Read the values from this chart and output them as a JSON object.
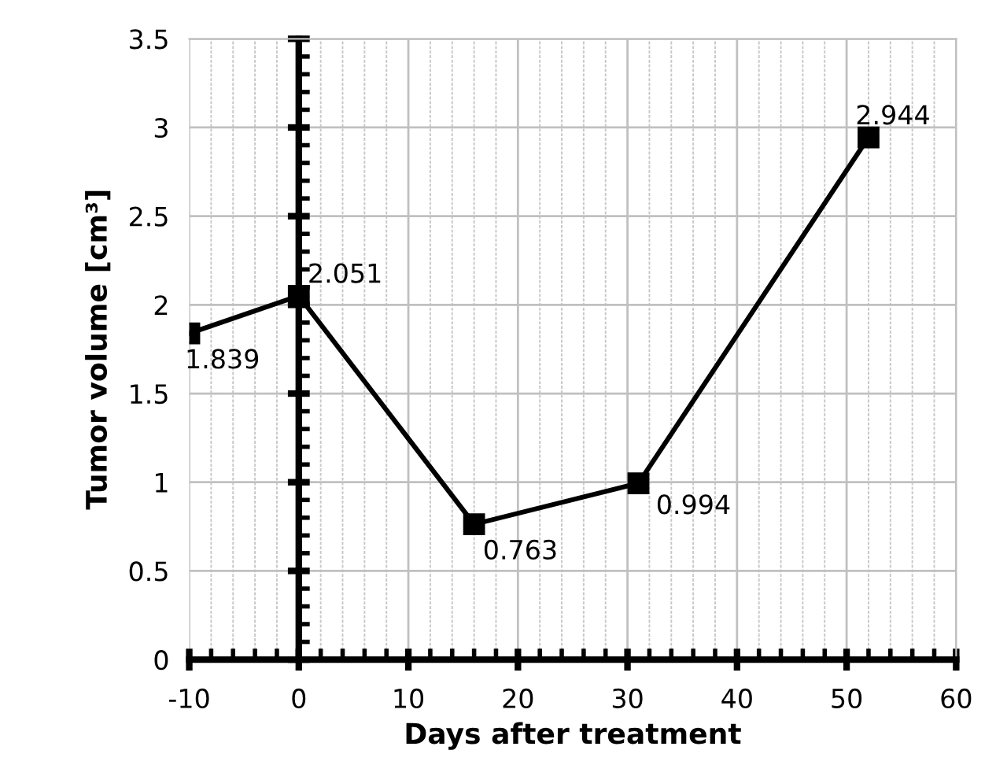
{
  "chart_data": {
    "type": "line",
    "xlabel": "Days after treatment",
    "ylabel": "Tumor volume [cm³]",
    "x": [
      -10,
      0,
      16,
      31,
      52
    ],
    "series": [
      {
        "color": "#000000",
        "values": [
          1.839,
          2.051,
          0.763,
          0.994,
          2.944
        ]
      }
    ],
    "xlim": [
      -10,
      60
    ],
    "xticks": [
      -10,
      0,
      10,
      20,
      30,
      40,
      50,
      60
    ],
    "ylim": [
      0,
      3.5
    ],
    "yticks": [
      0,
      0.5,
      1,
      1.5,
      2,
      2.5,
      3,
      3.5
    ],
    "grid": true,
    "marker": "square",
    "line_style": "solid",
    "data_labels": true
  }
}
